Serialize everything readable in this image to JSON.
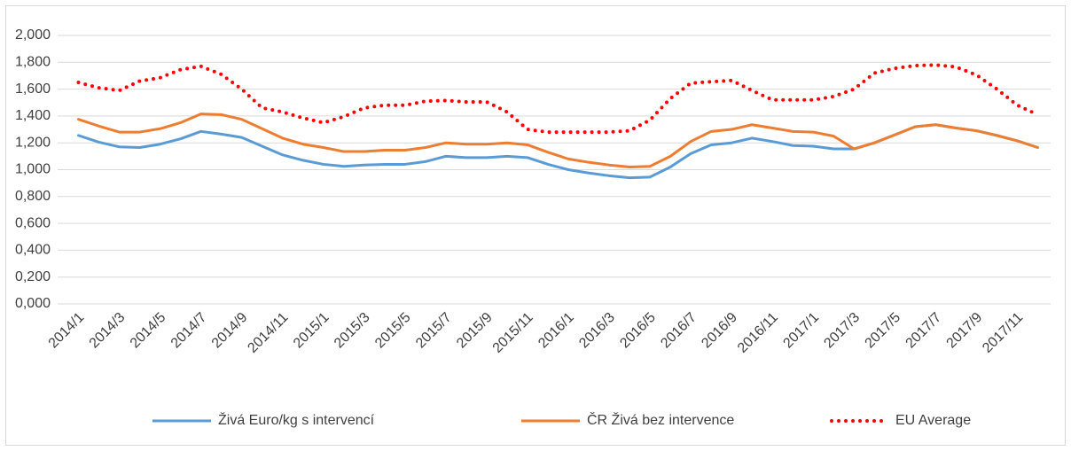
{
  "chart_data": {
    "type": "line",
    "categories": [
      "2014/1",
      null,
      "2014/3",
      null,
      "2014/5",
      null,
      "2014/7",
      null,
      "2014/9",
      null,
      "2014/11",
      null,
      "2015/1",
      null,
      "2015/3",
      null,
      "2015/5",
      null,
      "2015/7",
      null,
      "2015/9",
      null,
      "2015/11",
      null,
      "2016/1",
      null,
      "2016/3",
      null,
      "2016/5",
      null,
      "2016/7",
      null,
      "2016/9",
      null,
      "2016/11",
      null,
      "2017/1",
      null,
      "2017/3",
      null,
      "2017/5",
      null,
      "2017/7",
      null,
      "2017/9",
      null,
      "2017/11",
      null
    ],
    "series": [
      {
        "name": "Živá Euro/kg s intervencí",
        "color": "#5b9bd5",
        "style": "solid",
        "values": [
          1.255,
          1.205,
          1.17,
          1.165,
          1.19,
          1.23,
          1.285,
          1.265,
          1.24,
          1.175,
          1.11,
          1.07,
          1.04,
          1.025,
          1.035,
          1.04,
          1.04,
          1.06,
          1.1,
          1.09,
          1.09,
          1.1,
          1.09,
          1.04,
          1.0,
          0.975,
          0.955,
          0.94,
          0.945,
          1.02,
          1.12,
          1.185,
          1.2,
          1.235,
          1.21,
          1.18,
          1.175,
          1.155,
          1.155,
          1.2,
          1.26,
          1.32,
          1.335,
          1.31,
          1.29,
          1.255,
          1.215,
          1.165
        ]
      },
      {
        "name": "ČR Živá bez intervence",
        "color": "#ed7d31",
        "style": "solid",
        "values": [
          1.375,
          1.325,
          1.28,
          1.28,
          1.305,
          1.35,
          1.415,
          1.41,
          1.375,
          1.305,
          1.235,
          1.19,
          1.165,
          1.135,
          1.135,
          1.145,
          1.145,
          1.165,
          1.2,
          1.19,
          1.19,
          1.2,
          1.185,
          1.13,
          1.08,
          1.055,
          1.035,
          1.02,
          1.025,
          1.1,
          1.21,
          1.285,
          1.3,
          1.335,
          1.31,
          1.285,
          1.28,
          1.25,
          1.155,
          1.2,
          1.26,
          1.32,
          1.335,
          1.31,
          1.29,
          1.255,
          1.215,
          1.165
        ]
      },
      {
        "name": "EU Average",
        "color": "#ff0000",
        "style": "dotted",
        "values": [
          1.65,
          1.61,
          1.59,
          1.66,
          1.685,
          1.745,
          1.77,
          1.71,
          1.6,
          1.46,
          1.43,
          1.385,
          1.35,
          1.395,
          1.46,
          1.48,
          1.48,
          1.51,
          1.515,
          1.505,
          1.505,
          1.43,
          1.3,
          1.28,
          1.28,
          1.28,
          1.28,
          1.29,
          1.37,
          1.53,
          1.645,
          1.655,
          1.665,
          1.59,
          1.52,
          1.52,
          1.52,
          1.545,
          1.6,
          1.72,
          1.755,
          1.775,
          1.78,
          1.765,
          1.705,
          1.6,
          1.48,
          1.41
        ]
      }
    ],
    "ylim": [
      0,
      2
    ],
    "yticks": [
      {
        "value": 0,
        "label": "0,000"
      },
      {
        "value": 0.2,
        "label": "0,200"
      },
      {
        "value": 0.4,
        "label": "0,400"
      },
      {
        "value": 0.6,
        "label": "0,600"
      },
      {
        "value": 0.8,
        "label": "0,800"
      },
      {
        "value": 1,
        "label": "1,000"
      },
      {
        "value": 1.2,
        "label": "1,200"
      },
      {
        "value": 1.4,
        "label": "1,400"
      },
      {
        "value": 1.6,
        "label": "1,600"
      },
      {
        "value": 1.8,
        "label": "1,800"
      },
      {
        "value": 2,
        "label": "2,000"
      }
    ],
    "grid": true,
    "legend": "bottom"
  }
}
